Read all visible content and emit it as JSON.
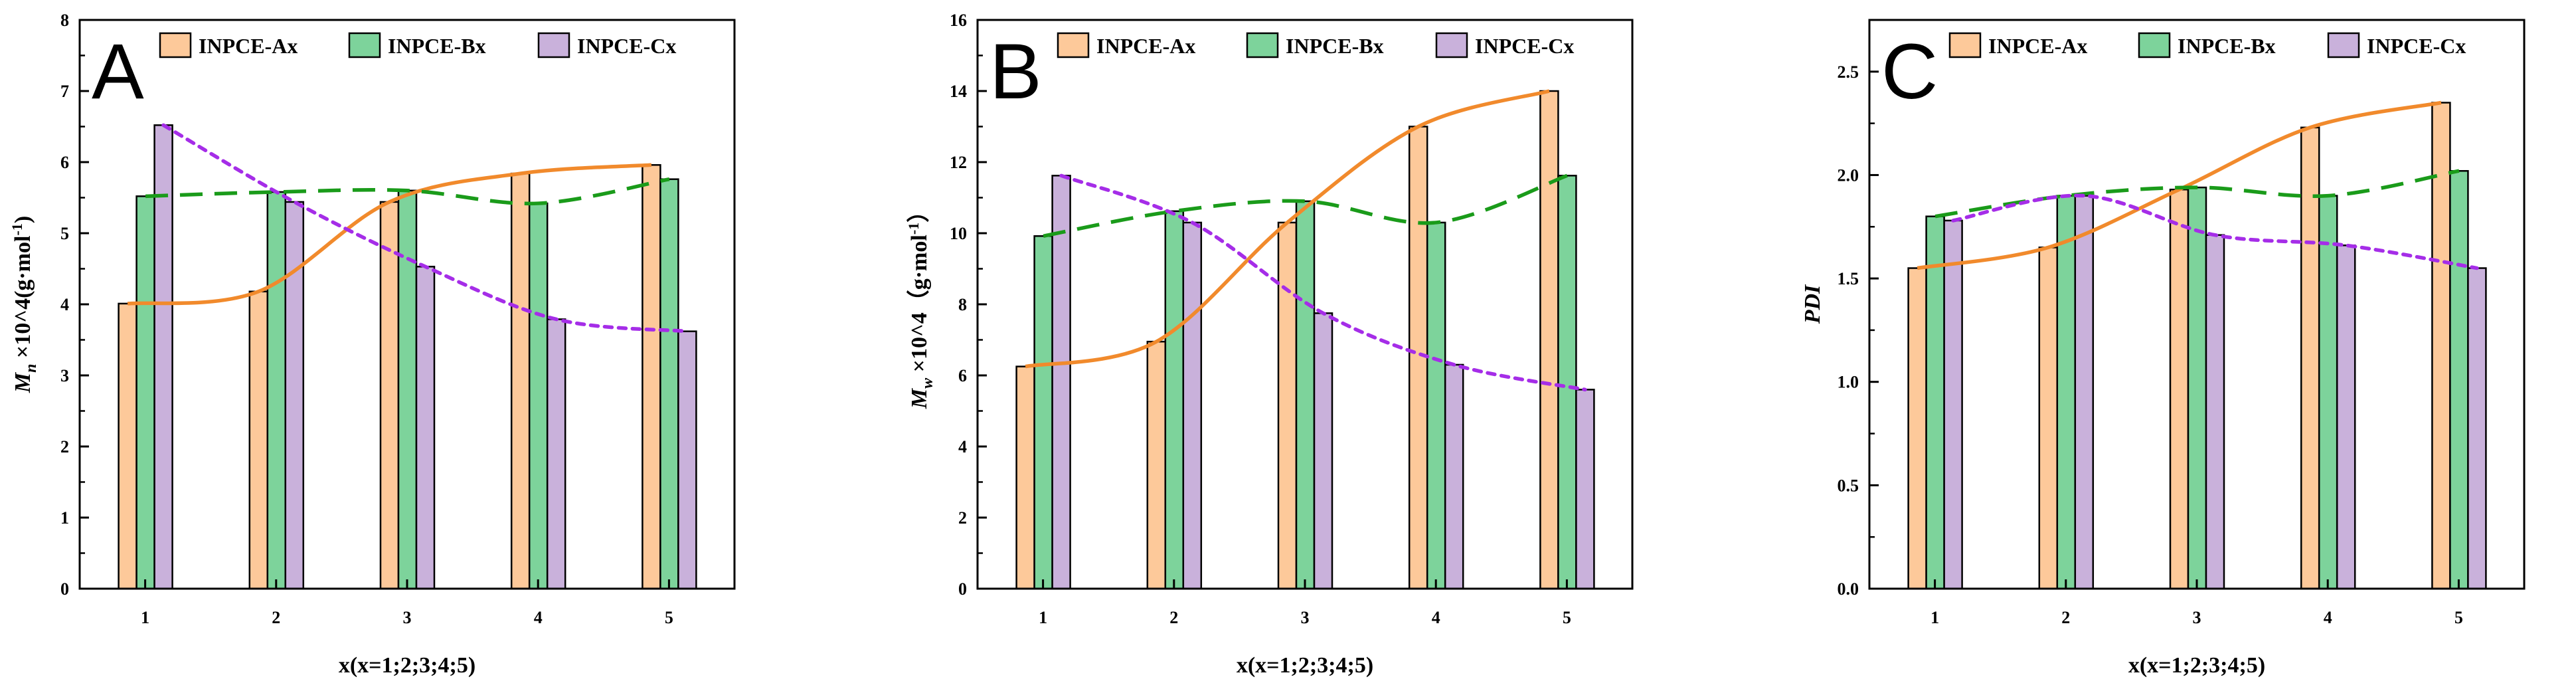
{
  "chart_data": [
    {
      "type": "bar",
      "panel": "A",
      "title": "",
      "xlabel": "x(x=1;2;3;4;5)",
      "ylabel": "Mn ×10^4(g·mol-1)",
      "ylabel_main": "M",
      "ylabel_sub": "n",
      "ylabel_rest": " ×10^4(g·mol",
      "ylabel_sup": "-1",
      "ylabel_end": ")",
      "categories": [
        "1",
        "2",
        "3",
        "4",
        "5"
      ],
      "ylim": [
        0,
        8
      ],
      "yticks": [
        "0",
        "1",
        "2",
        "3",
        "4",
        "5",
        "6",
        "7",
        "8"
      ],
      "legend_position": "top-right",
      "series": [
        {
          "name": "INPCE-Ax",
          "values": [
            4.01,
            4.18,
            5.44,
            5.84,
            5.96
          ],
          "trend": "solid"
        },
        {
          "name": "INPCE-Bx",
          "values": [
            5.52,
            5.58,
            5.6,
            5.42,
            5.76
          ],
          "trend": "dashed"
        },
        {
          "name": "INPCE-Cx",
          "values": [
            6.52,
            5.44,
            4.53,
            3.79,
            3.62
          ],
          "trend": "dotted"
        }
      ]
    },
    {
      "type": "bar",
      "panel": "B",
      "title": "",
      "xlabel": "x(x=1;2;3;4;5)",
      "ylabel": "Mw ×10^4（g·mol-1）",
      "ylabel_main": "M",
      "ylabel_sub": "w",
      "ylabel_rest": " ×10^4（g·mol",
      "ylabel_sup": "-1",
      "ylabel_end": "）",
      "categories": [
        "1",
        "2",
        "3",
        "4",
        "5"
      ],
      "ylim": [
        0,
        16
      ],
      "yticks": [
        "0",
        "2",
        "4",
        "6",
        "8",
        "10",
        "12",
        "14",
        "16"
      ],
      "legend_position": "top-right",
      "series": [
        {
          "name": "INPCE-Ax",
          "values": [
            6.25,
            6.95,
            10.3,
            13.0,
            14.0
          ],
          "trend": "solid"
        },
        {
          "name": "INPCE-Bx",
          "values": [
            9.92,
            10.62,
            10.9,
            10.3,
            11.62
          ],
          "trend": "dashed"
        },
        {
          "name": "INPCE-Cx",
          "values": [
            11.62,
            10.3,
            7.75,
            6.3,
            5.6
          ],
          "trend": "dotted"
        }
      ]
    },
    {
      "type": "bar",
      "panel": "C",
      "title": "",
      "xlabel": "x(x=1;2;3;4;5)",
      "ylabel": "PDI",
      "ylabel_main": "PDI",
      "ylabel_sub": "",
      "ylabel_rest": "",
      "ylabel_sup": "",
      "ylabel_end": "",
      "categories": [
        "1",
        "2",
        "3",
        "4",
        "5"
      ],
      "ylim": [
        0,
        2.75
      ],
      "yticks": [
        "0.0",
        "0.5",
        "1.0",
        "1.5",
        "2.0",
        "2.5"
      ],
      "legend_position": "top-right",
      "series": [
        {
          "name": "INPCE-Ax",
          "values": [
            1.55,
            1.65,
            1.93,
            2.23,
            2.35
          ],
          "trend": "solid"
        },
        {
          "name": "INPCE-Bx",
          "values": [
            1.8,
            1.9,
            1.94,
            1.9,
            2.02
          ],
          "trend": "dashed"
        },
        {
          "name": "INPCE-Cx",
          "values": [
            1.78,
            1.9,
            1.71,
            1.66,
            1.55
          ],
          "trend": "dotted"
        }
      ]
    }
  ],
  "colors": {
    "bar_fills": [
      "#fdc99a",
      "#7dd39b",
      "#c9b1db"
    ],
    "line_colors": [
      "#f18a2c",
      "#1a9b1a",
      "#a52de8"
    ],
    "bar_stroke": "#000000"
  }
}
